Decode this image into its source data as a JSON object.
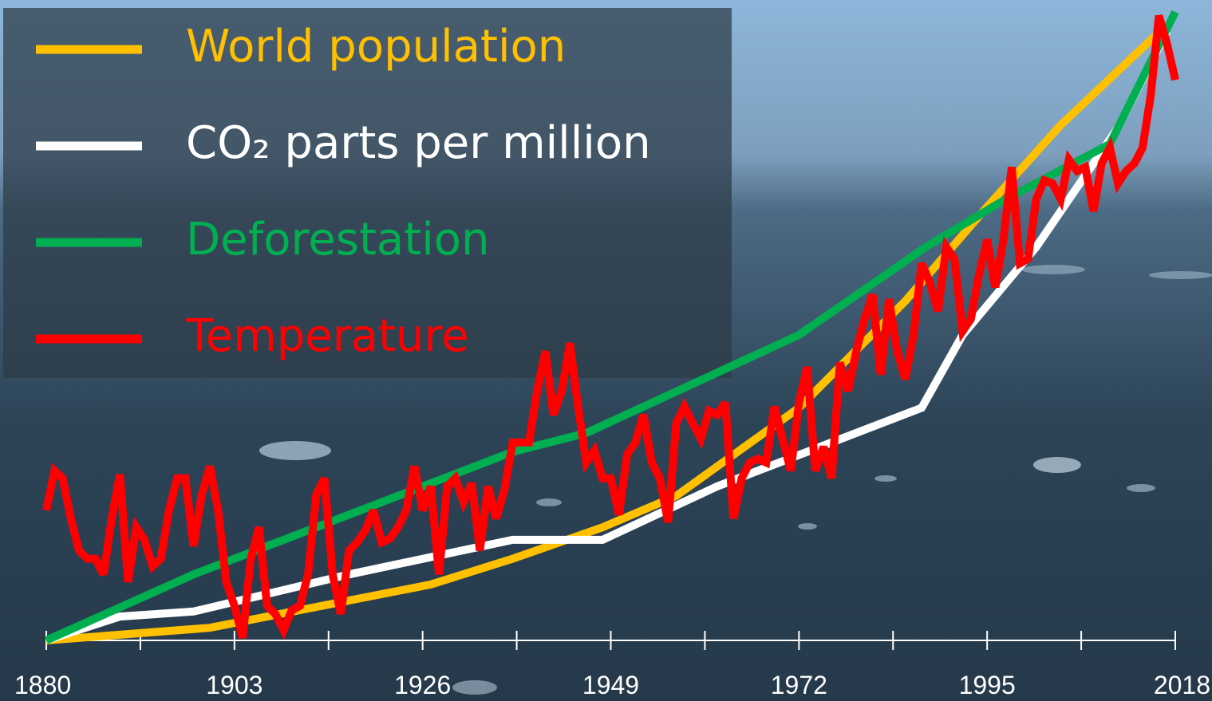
{
  "chart_data": {
    "type": "line",
    "xlim": [
      1880,
      2018
    ],
    "ylim": [
      0,
      100
    ],
    "xticks": [
      1880,
      1903,
      1926,
      1949,
      1972,
      1995,
      2018
    ],
    "legend": "top-left",
    "series": [
      {
        "name": "World population",
        "color": "#ffc000",
        "x": [
          1880,
          1900,
          1927,
          1937,
          1948,
          1957,
          1972,
          1985,
          1995,
          2004,
          2017
        ],
        "values": [
          0,
          2,
          8.9,
          13,
          18,
          23,
          37,
          54,
          69,
          82,
          98
        ]
      },
      {
        "name": "CO₂ parts per million",
        "color": "#ffffff",
        "x": [
          1880,
          1889,
          1898,
          1917,
          1937,
          1948,
          1962,
          1987,
          1992,
          2001,
          2011,
          2017
        ],
        "values": [
          0,
          3.8,
          4.6,
          10.5,
          16,
          16,
          24.5,
          37,
          48.6,
          62.6,
          81.6,
          97
        ]
      },
      {
        "name": "Deforestation",
        "color": "#00b050",
        "x": [
          1880,
          1898,
          1937,
          1946,
          1972,
          1987.5,
          1997,
          2010,
          2018
        ],
        "values": [
          0,
          10.5,
          30,
          33,
          48.6,
          62.6,
          70,
          79,
          100
        ]
      },
      {
        "name": "Temperature",
        "color": "#ff0000",
        "x": [
          1880,
          1881,
          1882,
          1883,
          1884,
          1885,
          1886,
          1887,
          1888,
          1889,
          1890,
          1891,
          1892,
          1893,
          1894,
          1895,
          1896,
          1897,
          1898,
          1899,
          1900,
          1901,
          1902,
          1903,
          1904,
          1905,
          1906,
          1907,
          1908,
          1909,
          1910,
          1911,
          1912,
          1913,
          1914,
          1915,
          1916,
          1917,
          1918,
          1919,
          1920,
          1921,
          1922,
          1923,
          1924,
          1925,
          1926,
          1927,
          1928,
          1929,
          1930,
          1931,
          1932,
          1933,
          1934,
          1935,
          1936,
          1937,
          1938,
          1939,
          1940,
          1941,
          1942,
          1943,
          1944,
          1945,
          1946,
          1947,
          1948,
          1949,
          1950,
          1951,
          1952,
          1953,
          1954,
          1955,
          1956,
          1957,
          1958,
          1959,
          1960,
          1961,
          1962,
          1963,
          1964,
          1965,
          1966,
          1967,
          1968,
          1969,
          1970,
          1971,
          1972,
          1973,
          1974,
          1975,
          1976,
          1977,
          1978,
          1979,
          1980,
          1981,
          1982,
          1983,
          1984,
          1985,
          1986,
          1987,
          1988,
          1989,
          1990,
          1991,
          1992,
          1993,
          1994,
          1995,
          1996,
          1997,
          1998,
          1999,
          2000,
          2001,
          2002,
          2003,
          2004,
          2005,
          2006,
          2007,
          2008,
          2009,
          2010,
          2011,
          2012,
          2013,
          2014,
          2015,
          2016,
          2017,
          2018
        ],
        "values": [
          20.7,
          27,
          25.8,
          19.4,
          14.3,
          13,
          13,
          10.5,
          19.4,
          26.4,
          9.3,
          18,
          16,
          11.8,
          13,
          20.7,
          25.8,
          25.8,
          15,
          23.2,
          27.7,
          20.7,
          9.3,
          5.5,
          0.4,
          13,
          18,
          5.5,
          4.2,
          1.6,
          4.8,
          5.5,
          10.5,
          23.2,
          25.8,
          10.5,
          4.2,
          14.3,
          15.6,
          17.5,
          20.7,
          15.6,
          16.2,
          18,
          20.7,
          27.7,
          20.7,
          24.5,
          10.5,
          24.5,
          25.8,
          22,
          25,
          14.3,
          24.5,
          19.4,
          23.9,
          31.5,
          31.5,
          31.5,
          39.7,
          46,
          35.9,
          39.7,
          47.3,
          37.2,
          28.3,
          30.2,
          25.8,
          25.8,
          20,
          29.6,
          31.5,
          35.9,
          28.3,
          25.8,
          18.8,
          34.6,
          37.2,
          34.6,
          32.1,
          36.5,
          35.9,
          37.8,
          19.4,
          25.8,
          28.3,
          28.9,
          28.3,
          37.2,
          32.1,
          27,
          37.8,
          43.5,
          27,
          30.8,
          25.8,
          44.2,
          39.7,
          46,
          51.1,
          55,
          42.3,
          54.3,
          46,
          41.6,
          48.6,
          60,
          56.9,
          52.4,
          62.6,
          60.7,
          49.2,
          51.1,
          58.1,
          63.8,
          56.2,
          63.8,
          75.3,
          60,
          60.7,
          70.2,
          73.2,
          72.7,
          70.2,
          76.5,
          74.7,
          75.3,
          68.3,
          75.9,
          78.4,
          72.7,
          74.7,
          75.9,
          78.4,
          86.7,
          99.4,
          94.9,
          89.2
        ]
      }
    ]
  }
}
